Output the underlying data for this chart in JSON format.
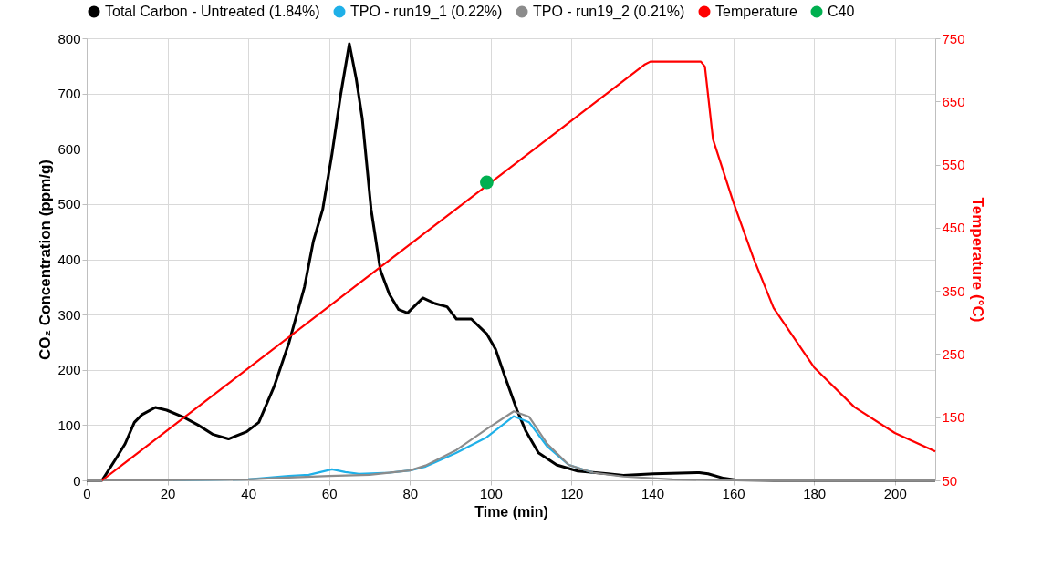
{
  "chart_data": {
    "type": "line",
    "xlabel": "Time (min)",
    "ylabel": "CO₂ Concentration (ppm/g)",
    "y2label": "Temperature (°C)",
    "xlim": [
      0,
      210
    ],
    "xticks": [
      0,
      20,
      40,
      60,
      80,
      100,
      120,
      140,
      160,
      180,
      200
    ],
    "ylim": [
      0,
      800
    ],
    "yticks": [
      0,
      100,
      200,
      300,
      400,
      500,
      600,
      700,
      800
    ],
    "y2lim": [
      50,
      750
    ],
    "y2ticks": [
      50,
      150,
      250,
      350,
      450,
      550,
      650,
      750
    ],
    "grid": true,
    "legend": "top",
    "marker": "none",
    "line_style": "solid",
    "series": [
      {
        "name": "Total Carbon - Untreated (1.84%)",
        "color": "#000000",
        "x": [
          0,
          3.8,
          7.3,
          9.5,
          11.8,
          13.7,
          17,
          19.8,
          23.8,
          27.6,
          31.3,
          35.1,
          39.6,
          42.6,
          46.4,
          50.1,
          53.9,
          56.1,
          58.4,
          60.7,
          62.9,
          65,
          66.7,
          68.2,
          70.4,
          72.7,
          74.9,
          77.2,
          79.4,
          83.2,
          86.2,
          89.2,
          91.5,
          95.2,
          99,
          101.2,
          103.5,
          106.5,
          108.7,
          111.8,
          116.3,
          121.5,
          129,
          132.8,
          140.3,
          151.6,
          153.8,
          157.6,
          160.6,
          170,
          190,
          210
        ],
        "values": [
          0,
          0,
          40,
          66,
          105,
          119,
          132,
          127,
          115,
          100,
          83,
          75,
          88,
          105,
          170,
          250,
          350,
          433,
          490,
          590,
          700,
          790,
          727,
          655,
          490,
          380,
          337,
          309,
          303,
          330,
          320,
          314,
          292,
          292,
          265,
          237,
          188,
          127,
          89,
          50,
          28,
          17,
          12,
          9,
          12,
          14,
          12,
          4,
          1,
          0,
          0,
          0
        ]
      },
      {
        "name": "TPO - run19_1 (0.22%)",
        "color": "#1fb0e8",
        "x": [
          0,
          20,
          40,
          50,
          55,
          60.7,
          64,
          67.4,
          75,
          80,
          83.9,
          91.5,
          99,
          105.7,
          109.5,
          114,
          119.3,
          125.3
        ],
        "values": [
          0,
          0,
          2,
          8,
          10,
          20,
          15,
          12,
          14,
          18,
          25,
          50,
          78,
          116,
          105,
          61,
          28,
          14
        ]
      },
      {
        "name": "TPO - run19_2 (0.21%)",
        "color": "#8c8c8c",
        "x": [
          0,
          20,
          40,
          50,
          60,
          70,
          80,
          83.9,
          91.5,
          99,
          105.7,
          109.5,
          114,
          119.3,
          125.3,
          132.8,
          145,
          160,
          210
        ],
        "values": [
          0,
          0,
          2,
          5,
          8,
          10,
          18,
          27,
          55,
          93,
          125,
          115,
          66,
          28,
          14,
          7,
          2,
          0,
          0
        ]
      },
      {
        "name": "Temperature",
        "color": "#ff0000",
        "axis": "y2",
        "x": [
          3.8,
          138,
          139.5,
          152,
          153,
          155,
          160,
          165,
          170,
          180,
          190,
          200,
          210
        ],
        "values": [
          50,
          708,
          713,
          713,
          705,
          590,
          491,
          402,
          323,
          229,
          166,
          125,
          96
        ]
      },
      {
        "name": "C40",
        "color": "#00b050",
        "type": "scatter",
        "marker": "circle",
        "axis": "y2",
        "x": [
          99
        ],
        "values": [
          522
        ]
      }
    ]
  }
}
